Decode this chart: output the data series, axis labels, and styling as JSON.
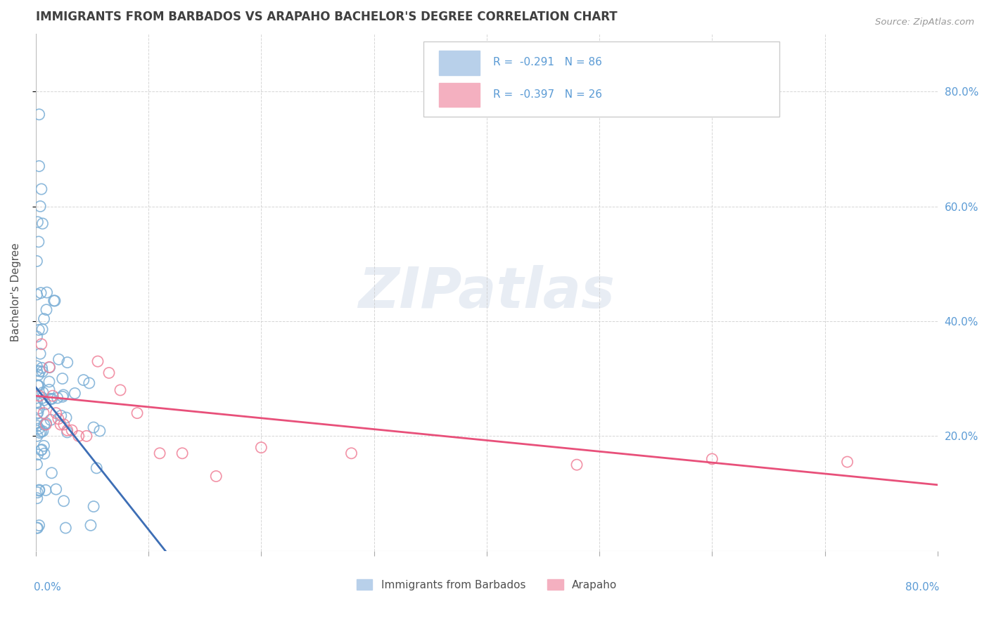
{
  "title": "IMMIGRANTS FROM BARBADOS VS ARAPAHO BACHELOR'S DEGREE CORRELATION CHART",
  "source_text": "Source: ZipAtlas.com",
  "ylabel": "Bachelor's Degree",
  "right_ytick_vals": [
    0.2,
    0.4,
    0.6,
    0.8
  ],
  "right_ytick_labels": [
    "20.0%",
    "40.0%",
    "60.0%",
    "80.0%"
  ],
  "xlim": [
    0.0,
    0.8
  ],
  "ylim": [
    0.0,
    0.9
  ],
  "blue_line_x": [
    0.0,
    0.115
  ],
  "blue_line_y": [
    0.285,
    0.0
  ],
  "pink_line_x": [
    0.0,
    0.8
  ],
  "pink_line_y": [
    0.27,
    0.115
  ],
  "blue_color": "#3d6eb5",
  "pink_color": "#e8507a",
  "blue_marker_color": "#7aaed6",
  "pink_marker_color": "#f08098",
  "grid_color": "#cccccc",
  "title_color": "#404040",
  "source_color": "#999999",
  "legend_label_color": "#5b9bd5",
  "watermark": "ZIPatlas",
  "legend_blue_text": "R =  -0.291   N = 86",
  "legend_pink_text": "R =  -0.397   N = 26",
  "bottom_legend_blue": "Immigrants from Barbados",
  "bottom_legend_pink": "Arapaho"
}
